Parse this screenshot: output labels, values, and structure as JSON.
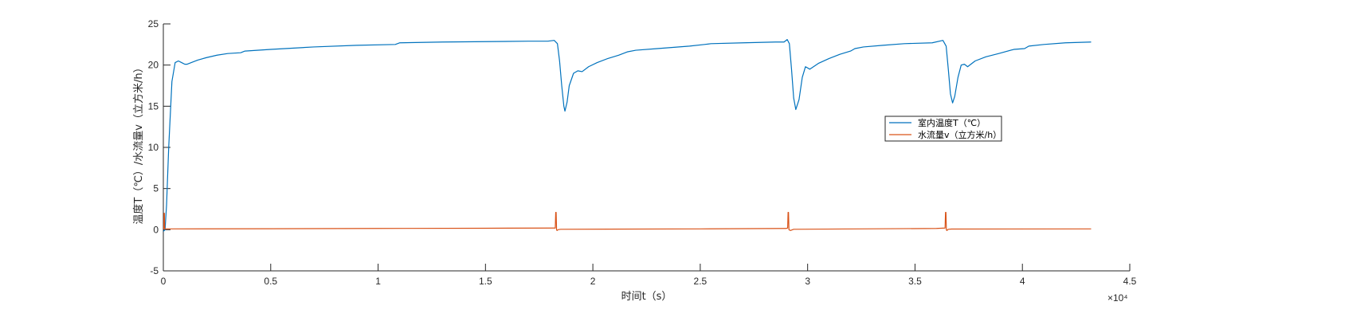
{
  "chart_data": {
    "type": "line",
    "title": "",
    "xlabel": "时间t（s）",
    "ylabel": "温度T（℃）/水流量v（立方米/h）",
    "x_exponent_label": "×10⁴",
    "xlim": [
      0,
      45000
    ],
    "ylim": [
      -5,
      25
    ],
    "x_ticks": [
      0,
      5000,
      10000,
      15000,
      20000,
      25000,
      30000,
      35000,
      40000,
      45000
    ],
    "x_tick_labels": [
      "0",
      "0.5",
      "1",
      "1.5",
      "2",
      "2.5",
      "3",
      "3.5",
      "4",
      "4.5"
    ],
    "y_ticks": [
      -5,
      0,
      5,
      10,
      15,
      20,
      25
    ],
    "y_tick_labels": [
      "-5",
      "0",
      "5",
      "10",
      "15",
      "20",
      "25"
    ],
    "grid": false,
    "legend_position": "right-middle",
    "series": [
      {
        "name": "室内温度T（℃）",
        "color": "#0072BD",
        "x": [
          0,
          80,
          150,
          250,
          400,
          550,
          700,
          850,
          1000,
          1100,
          1300,
          1600,
          2000,
          2500,
          3000,
          3600,
          3800,
          5000,
          7000,
          9000,
          10800,
          11000,
          13000,
          15000,
          17000,
          17900,
          18200,
          18350,
          18450,
          18550,
          18650,
          18700,
          18800,
          18900,
          19100,
          19300,
          19500,
          19800,
          20200,
          20700,
          21200,
          21600,
          22000,
          23000,
          24500,
          25200,
          25500,
          27000,
          28500,
          28900,
          29050,
          29150,
          29250,
          29350,
          29450,
          29600,
          29750,
          29900,
          30100,
          30500,
          31000,
          31500,
          32000,
          32200,
          32600,
          33500,
          34500,
          35800,
          36300,
          36450,
          36550,
          36650,
          36750,
          36850,
          37000,
          37150,
          37300,
          37450,
          37800,
          38300,
          38900,
          39600,
          40100,
          40300,
          41000,
          42000,
          43200
        ],
        "y": [
          -0.2,
          0,
          3,
          10,
          18,
          20.3,
          20.5,
          20.3,
          20.1,
          20.1,
          20.3,
          20.6,
          20.9,
          21.2,
          21.4,
          21.5,
          21.7,
          21.9,
          22.2,
          22.4,
          22.5,
          22.7,
          22.8,
          22.85,
          22.9,
          22.9,
          23.0,
          22.6,
          20.5,
          17.5,
          15.0,
          14.4,
          15.5,
          17.5,
          19.0,
          19.3,
          19.2,
          19.8,
          20.3,
          20.8,
          21.2,
          21.6,
          21.8,
          22.0,
          22.3,
          22.5,
          22.6,
          22.7,
          22.8,
          22.8,
          23.1,
          22.6,
          19.5,
          16.0,
          14.6,
          15.8,
          18.5,
          19.8,
          19.5,
          20.2,
          20.8,
          21.3,
          21.7,
          22.0,
          22.2,
          22.4,
          22.6,
          22.7,
          23.0,
          22.3,
          19.5,
          16.5,
          15.4,
          16.2,
          18.5,
          20.0,
          20.1,
          19.8,
          20.5,
          21.0,
          21.4,
          21.9,
          22.0,
          22.3,
          22.5,
          22.7,
          22.8
        ]
      },
      {
        "name": "水流量v（立方米/h）",
        "color": "#D95319",
        "x": [
          0,
          20,
          30,
          50,
          60,
          300,
          5000,
          10000,
          15000,
          18150,
          18250,
          18270,
          18290,
          18310,
          18330,
          18380,
          18500,
          25000,
          29000,
          29050,
          29070,
          29090,
          29110,
          29130,
          29200,
          29350,
          36000,
          36400,
          36420,
          36440,
          36460,
          36480,
          36550,
          36700,
          43200
        ],
        "y": [
          0.1,
          0.1,
          2.0,
          2.0,
          0.1,
          0.1,
          0.12,
          0.15,
          0.18,
          0.2,
          0.2,
          2.1,
          2.1,
          0.0,
          -0.1,
          0.0,
          0.05,
          0.1,
          0.15,
          0.2,
          0.2,
          2.1,
          2.1,
          0.0,
          -0.1,
          0.05,
          0.15,
          0.2,
          2.1,
          2.1,
          0.0,
          -0.1,
          0.05,
          0.08,
          0.1
        ]
      }
    ]
  }
}
